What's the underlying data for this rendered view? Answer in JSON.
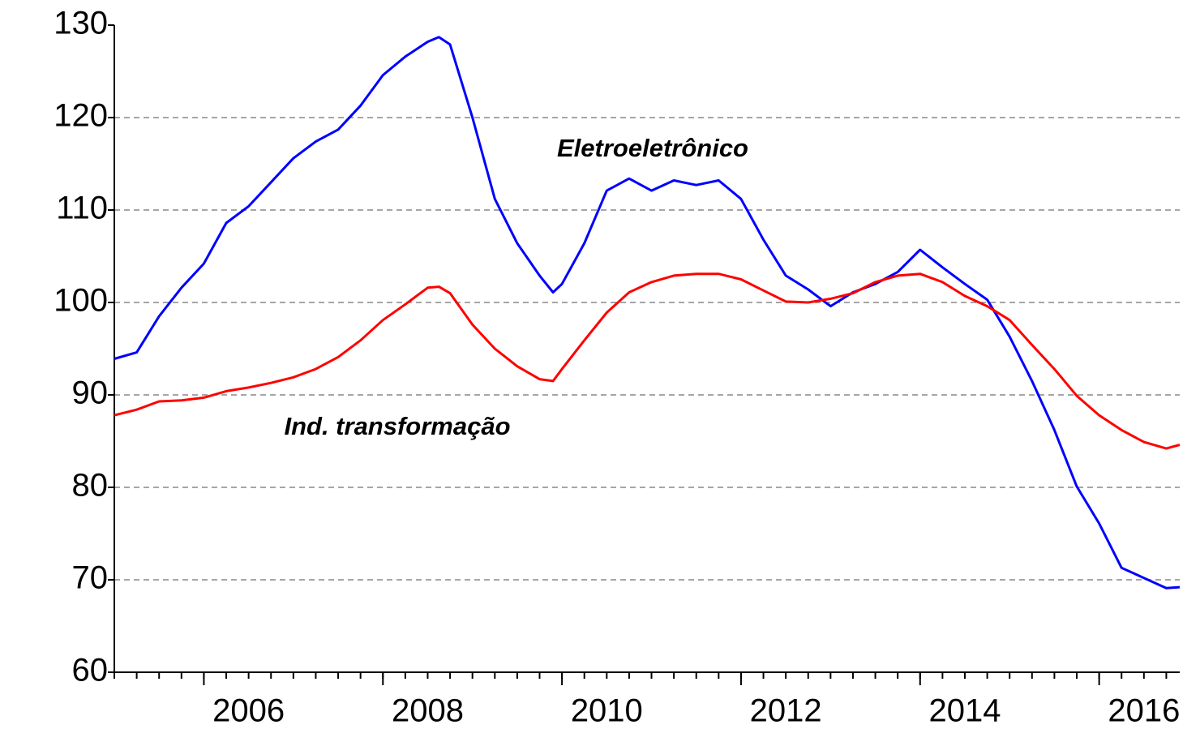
{
  "chart_data": {
    "type": "line",
    "annotations": [
      {
        "text": "Eletroeletrônico"
      },
      {
        "text": "Ind. transformação"
      }
    ],
    "x": [
      2005.0,
      2005.25,
      2005.5,
      2005.75,
      2006.0,
      2006.25,
      2006.5,
      2006.75,
      2007.0,
      2007.25,
      2007.5,
      2007.75,
      2008.0,
      2008.25,
      2008.5,
      2008.625,
      2008.75,
      2009.0,
      2009.25,
      2009.5,
      2009.75,
      2009.9,
      2010.0,
      2010.25,
      2010.5,
      2010.75,
      2011.0,
      2011.25,
      2011.5,
      2011.75,
      2012.0,
      2012.25,
      2012.5,
      2012.75,
      2013.0,
      2013.25,
      2013.5,
      2013.75,
      2014.0,
      2014.25,
      2014.5,
      2014.75,
      2015.0,
      2015.25,
      2015.5,
      2015.75,
      2016.0,
      2016.25,
      2016.5,
      2016.75,
      2016.9
    ],
    "series": [
      {
        "name": "Eletroeletrônico",
        "color": "#0000ff",
        "values": [
          93.9,
          94.6,
          98.5,
          101.6,
          104.2,
          108.6,
          110.4,
          113,
          115.6,
          117.4,
          118.7,
          121.3,
          124.6,
          126.6,
          128.2,
          128.7,
          127.9,
          120,
          111.2,
          106.4,
          102.9,
          101.1,
          102,
          106.4,
          112.1,
          113.4,
          112.1,
          113.2,
          112.7,
          113.2,
          111.2,
          106.8,
          102.9,
          101.4,
          99.6,
          101.1,
          102,
          103.3,
          105.7,
          103.8,
          102,
          100.3,
          96.3,
          91.5,
          86.2,
          80.1,
          76.1,
          71.3,
          70.2,
          69.1,
          69.2
        ]
      },
      {
        "name": "Ind. transformação",
        "color": "#ff0000",
        "values": [
          87.8,
          88.4,
          89.3,
          89.4,
          89.7,
          90.4,
          90.8,
          91.3,
          91.9,
          92.8,
          94.1,
          95.9,
          98.1,
          99.8,
          101.6,
          101.7,
          101,
          97.6,
          95,
          93.1,
          91.7,
          91.5,
          92.8,
          95.9,
          98.9,
          101.1,
          102.2,
          102.9,
          103.1,
          103.1,
          102.5,
          101.3,
          100.1,
          100,
          100.4,
          101,
          102.2,
          102.9,
          103.1,
          102.2,
          100.7,
          99.6,
          98.1,
          95.4,
          92.8,
          89.9,
          87.8,
          86.2,
          84.9,
          84.2,
          84.6
        ]
      }
    ],
    "xlim": [
      2005,
      2016.9
    ],
    "xticks": [
      2006,
      2008,
      2010,
      2012,
      2014,
      2016
    ],
    "ylim": [
      60,
      130
    ],
    "yticks": [
      60,
      70,
      80,
      90,
      100,
      110,
      120,
      130
    ],
    "grid": true
  }
}
